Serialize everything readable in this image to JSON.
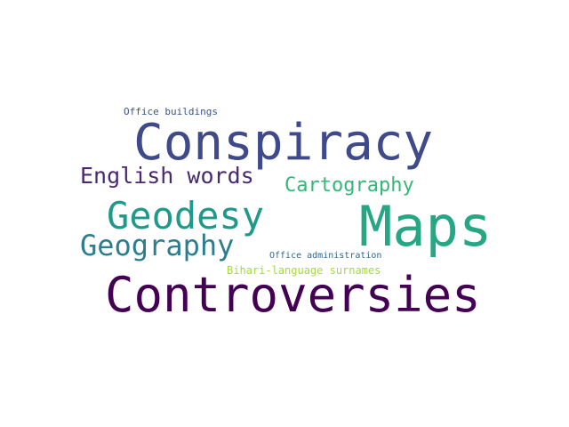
{
  "word_cloud": {
    "words": [
      {
        "id": "conspiracy",
        "text": "Conspiracy",
        "color": "#3e4a89"
      },
      {
        "id": "maps",
        "text": "Maps",
        "color": "#26a784"
      },
      {
        "id": "controversies",
        "text": "Controversies",
        "color": "#440154"
      },
      {
        "id": "geodesy",
        "text": "Geodesy",
        "color": "#1f9a8a"
      },
      {
        "id": "geography",
        "text": "Geography",
        "color": "#2c7e8e"
      },
      {
        "id": "english",
        "text": "English words",
        "color": "#4a2a6e"
      },
      {
        "id": "cartography",
        "text": "Cartography",
        "color": "#35b779"
      },
      {
        "id": "office_bld",
        "text": "Office buildings",
        "color": "#3b528b"
      },
      {
        "id": "office_adm",
        "text": "Office administration",
        "color": "#31688e"
      },
      {
        "id": "bihari",
        "text": "Bihari-language surnames",
        "color": "#a5db36"
      }
    ]
  }
}
